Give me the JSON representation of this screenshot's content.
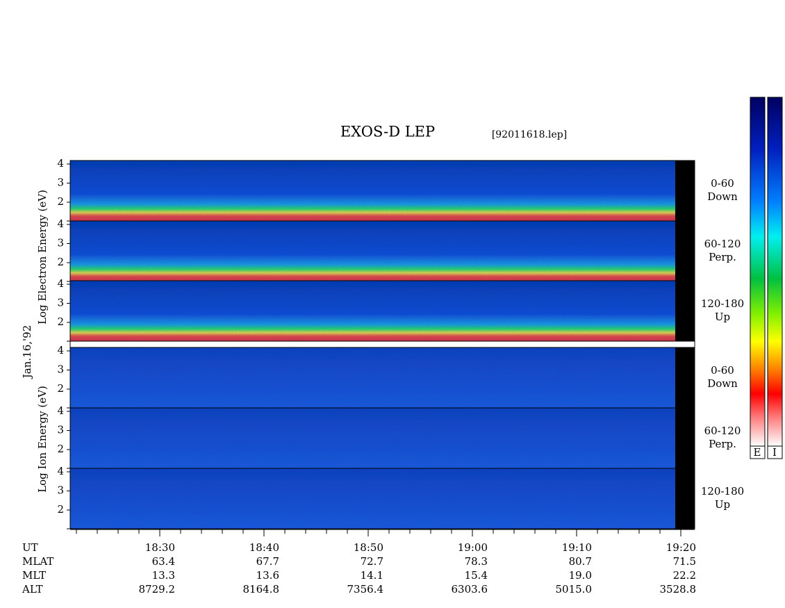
{
  "title": "EXOS-D LEP",
  "file": "[92011618.lep]",
  "date": "Jan.16,'92",
  "electron_axis": "Log  Electron  Energy (eV)",
  "ion_axis": "Log  Ion  Energy (eV)",
  "energy_ticks": [
    2,
    3,
    4
  ],
  "pitch_labels": [
    [
      "0-60",
      "Down"
    ],
    [
      "60-120",
      "Perp."
    ],
    [
      "120-180",
      "Up"
    ]
  ],
  "colorbar_labels": [
    "E",
    "I"
  ],
  "time_ticks": [
    "18:30",
    "18:40",
    "18:50",
    "19:00",
    "19:10",
    "19:20"
  ],
  "rows": [
    {
      "label": "UT"
    },
    {
      "label": "MLAT",
      "values": [
        "63.4",
        "67.7",
        "72.7",
        "78.3",
        "80.7",
        "71.5"
      ]
    },
    {
      "label": "MLT",
      "values": [
        "13.3",
        "13.6",
        "14.1",
        "15.4",
        "19.0",
        "22.2"
      ]
    },
    {
      "label": "ALT",
      "values": [
        "8729.2",
        "8164.8",
        "7356.4",
        "6303.6",
        "5015.0",
        "3528.8"
      ]
    }
  ]
}
